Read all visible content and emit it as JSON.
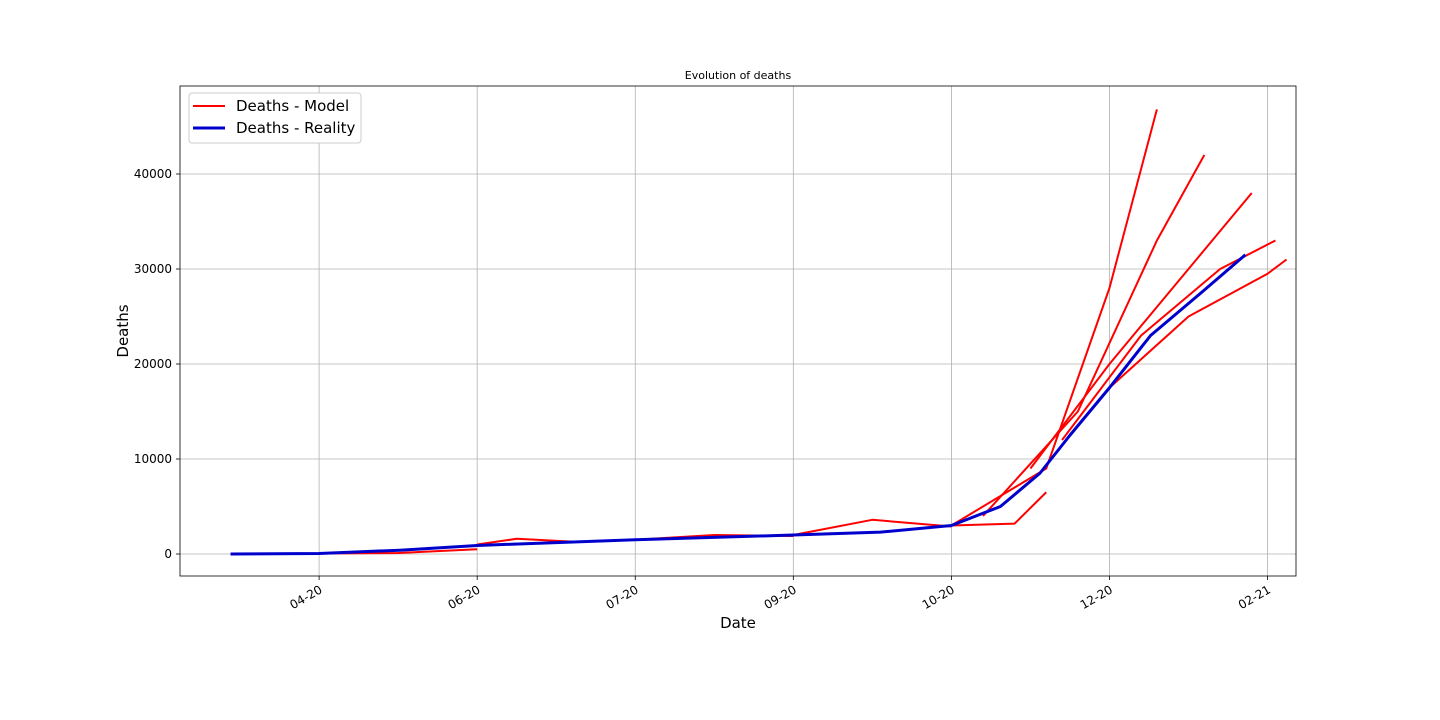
{
  "chart_data": {
    "type": "line",
    "title": "Evolution of deaths",
    "xlabel": "Date",
    "ylabel": "Deaths",
    "grid": true,
    "legend": "upper left",
    "xlim": [
      -0.88,
      6.18
    ],
    "ylim": [
      -2316,
      49263
    ],
    "xticks": [
      {
        "value": 0,
        "label": "04-20"
      },
      {
        "value": 1,
        "label": "06-20"
      },
      {
        "value": 2,
        "label": "07-20"
      },
      {
        "value": 3,
        "label": "09-20"
      },
      {
        "value": 4,
        "label": "10-20"
      },
      {
        "value": 5,
        "label": "12-20"
      },
      {
        "value": 6,
        "label": "02-21"
      }
    ],
    "yticks": [
      0,
      10000,
      20000,
      30000,
      40000
    ],
    "series": [
      {
        "name": "Deaths - Model",
        "color": "#ff0000",
        "runs": [
          {
            "x": [
              -0.56,
              0.5,
              1.0
            ],
            "values": [
              0,
              100,
              500
            ]
          },
          {
            "x": [
              1.0,
              1.25,
              1.6
            ],
            "values": [
              1000,
              1600,
              1300
            ]
          },
          {
            "x": [
              2.0,
              2.5,
              3.0
            ],
            "values": [
              1500,
              2000,
              1900
            ]
          },
          {
            "x": [
              3.0,
              3.5,
              4.0
            ],
            "values": [
              2000,
              3600,
              2900
            ]
          },
          {
            "x": [
              4.0,
              4.4,
              4.6
            ],
            "values": [
              3000,
              3200,
              6500
            ]
          },
          {
            "x": [
              4.0,
              4.6,
              5.0,
              5.3
            ],
            "values": [
              3000,
              9000,
              28000,
              46800
            ]
          },
          {
            "x": [
              4.2,
              4.8,
              5.3,
              5.6
            ],
            "values": [
              4000,
              15000,
              33000,
              42000
            ]
          },
          {
            "x": [
              4.5,
              5.0,
              5.5,
              5.9
            ],
            "values": [
              9000,
              20000,
              30000,
              38000
            ]
          },
          {
            "x": [
              4.7,
              5.2,
              5.7,
              6.05
            ],
            "values": [
              12000,
              23000,
              30000,
              33000
            ]
          },
          {
            "x": [
              5.0,
              5.5,
              6.0,
              6.12
            ],
            "values": [
              17500,
              25000,
              29500,
              31000
            ]
          }
        ]
      },
      {
        "name": "Deaths - Reality",
        "color": "#0000cc",
        "x": [
          -0.56,
          0,
          0.51,
          1,
          2,
          3,
          3.55,
          4,
          4.31,
          4.56,
          4.75,
          5,
          5.26,
          5.58,
          5.86
        ],
        "values": [
          0,
          50,
          400,
          900,
          1500,
          2000,
          2300,
          3000,
          5000,
          8500,
          12500,
          17500,
          23000,
          27500,
          31500
        ]
      }
    ]
  }
}
